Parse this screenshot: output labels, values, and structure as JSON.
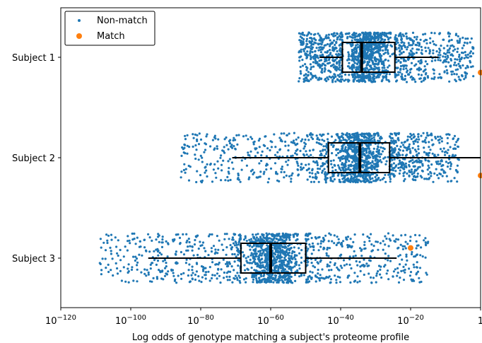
{
  "chart_data": {
    "type": "scatter",
    "subtype": "strip-plot-with-boxplots",
    "title": "",
    "xlabel": "Log odds of genotype matching a subject's proteome profile",
    "ylabel": "",
    "x_scale": "log",
    "xlim_exponent": [
      -120,
      0
    ],
    "x_ticks": [
      {
        "exp": -120,
        "base": "10",
        "sup": "−120"
      },
      {
        "exp": -100,
        "base": "10",
        "sup": "−100"
      },
      {
        "exp": -80,
        "base": "10",
        "sup": "−80"
      },
      {
        "exp": -60,
        "base": "10",
        "sup": "−60"
      },
      {
        "exp": -40,
        "base": "10",
        "sup": "−40"
      },
      {
        "exp": -20,
        "base": "10",
        "sup": "−20"
      },
      {
        "exp": 0,
        "base": "1",
        "sup": ""
      }
    ],
    "categories": [
      "Subject 1",
      "Subject 2",
      "Subject 3"
    ],
    "legend": {
      "position": "upper-left",
      "items": [
        {
          "label": "Non-match",
          "color": "#1f77b4"
        },
        {
          "label": "Match",
          "color": "#ff7f0e"
        }
      ]
    },
    "series": [
      {
        "name": "Non-match",
        "color": "#1f77b4",
        "groups": [
          {
            "category": "Subject 1",
            "n_points_approx": 1500,
            "range_exp": [
              -52,
              -2
            ],
            "box_exp": {
              "whisker_low": -46,
              "q1": -39.5,
              "median": -34,
              "q3": -24.5,
              "whisker_high": -12
            }
          },
          {
            "category": "Subject 2",
            "n_points_approx": 1500,
            "range_exp": [
              -86,
              -6
            ],
            "box_exp": {
              "whisker_low": -71,
              "q1": -43.5,
              "median": -34.5,
              "q3": -26,
              "whisker_high": 0
            }
          },
          {
            "category": "Subject 3",
            "n_points_approx": 1500,
            "range_exp": [
              -109,
              -15
            ],
            "box_exp": {
              "whisker_low": -95,
              "q1": -68.5,
              "median": -60,
              "q3": -50,
              "whisker_high": -24
            }
          }
        ]
      },
      {
        "name": "Match",
        "color": "#ff7f0e",
        "points": [
          {
            "category": "Subject 1",
            "x_exp": 0,
            "jitter": 0.18
          },
          {
            "category": "Subject 2",
            "x_exp": 0,
            "jitter": 0.21
          },
          {
            "category": "Subject 3",
            "x_exp": -20,
            "jitter": -0.12
          }
        ]
      }
    ],
    "colors": {
      "non_match": "#1f77b4",
      "match": "#ff7f0e",
      "box": "#000000"
    }
  }
}
